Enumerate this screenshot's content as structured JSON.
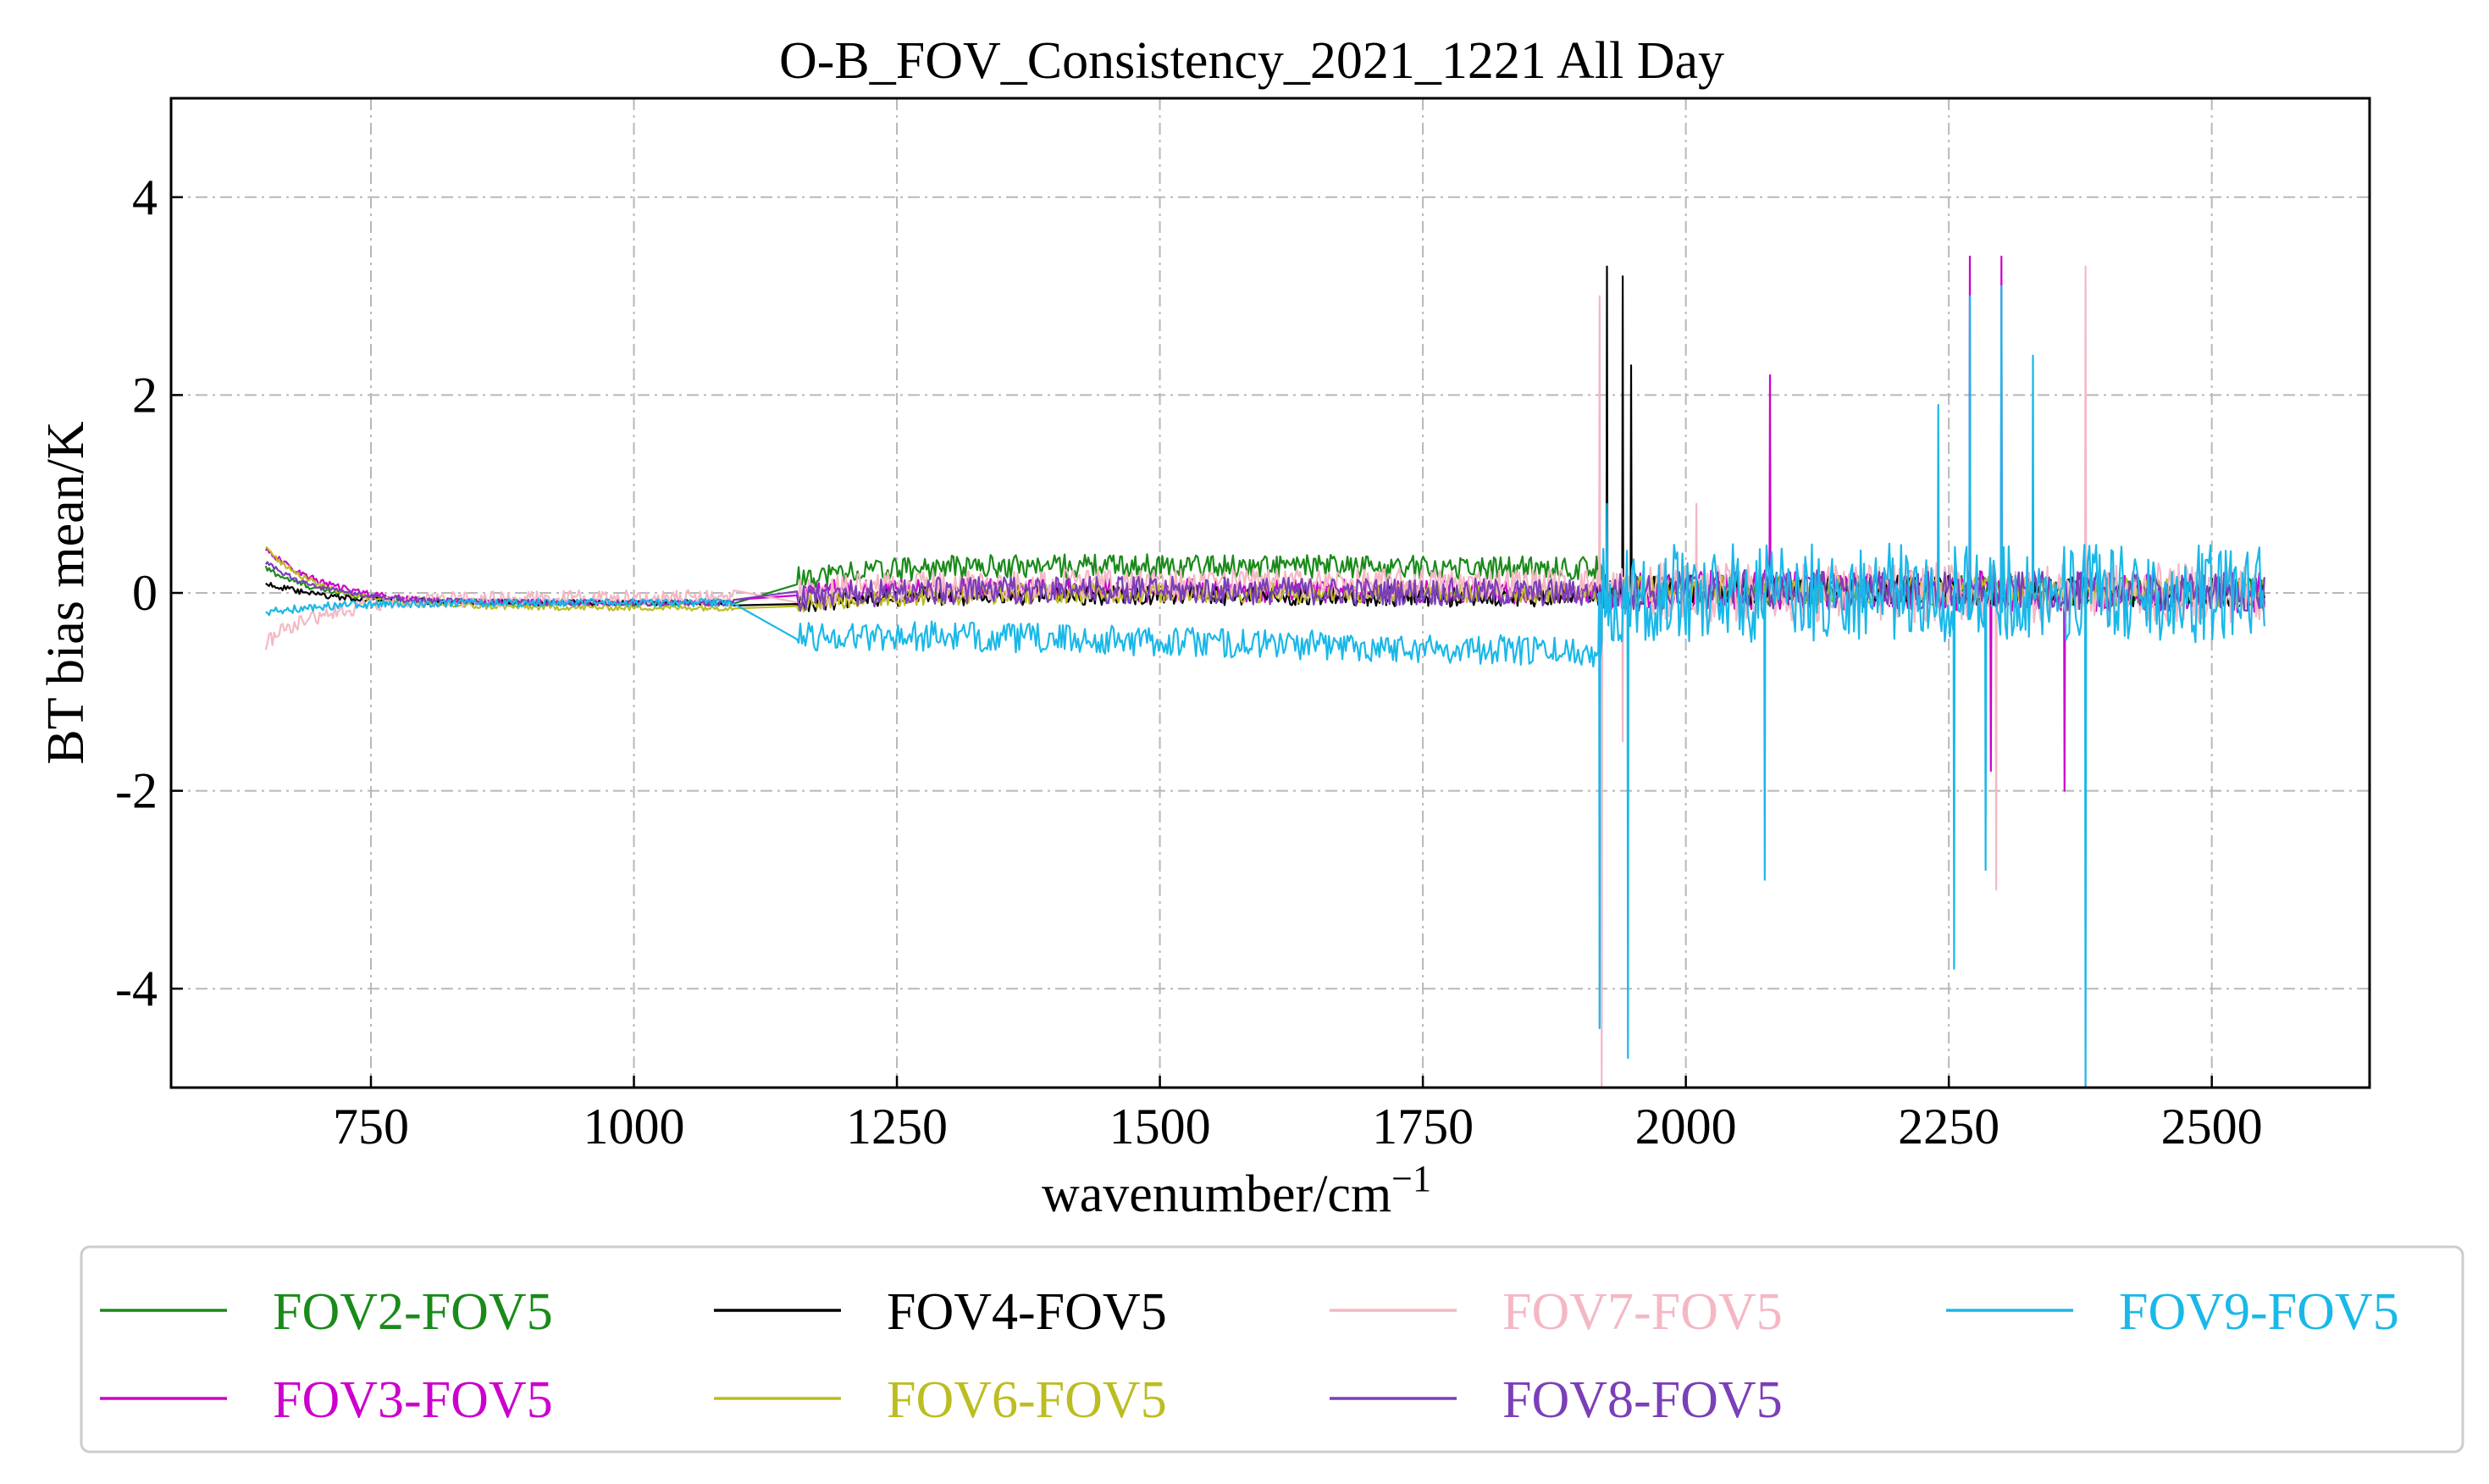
{
  "chart_data": {
    "type": "line",
    "title": "O-B_FOV_Consistency_2021_1221 All Day",
    "xlabel": "wavenumber/cm",
    "xlabel_superscript": "−1",
    "ylabel": "BT bias mean/K",
    "xlim": [
      560,
      2650
    ],
    "ylim": [
      -5,
      5
    ],
    "x_ticks": [
      750,
      1000,
      1250,
      1500,
      1750,
      2000,
      2250,
      2500
    ],
    "x_tick_labels": [
      "750",
      "1000",
      "1250",
      "1500",
      "1750",
      "2000",
      "2250",
      "2500"
    ],
    "y_ticks": [
      -4,
      -2,
      0,
      2,
      4
    ],
    "y_tick_labels": [
      "-4",
      "-2",
      "0",
      "2",
      "4"
    ],
    "grid": true,
    "legend_position": "bottom",
    "legend_columns": 4,
    "series": [
      {
        "name": "FOV2-FOV5",
        "color": "#1a8a1a",
        "segments": [
          {
            "x0": 650,
            "x1": 1095,
            "y_start": 0.25,
            "y_end": -0.1,
            "mean": -0.1,
            "noise": 0.03
          },
          {
            "x0": 1155,
            "x1": 1920,
            "y_start": 0.15,
            "y_end": 0.25,
            "mean": 0.3,
            "noise": 0.12
          },
          {
            "x0": 1920,
            "x1": 2550,
            "y_start": 0.0,
            "y_end": 0.0,
            "mean": 0.05,
            "noise": 0.15
          }
        ]
      },
      {
        "name": "FOV3-FOV5",
        "color": "#cc00cc",
        "segments": [
          {
            "x0": 650,
            "x1": 1095,
            "y_start": 0.45,
            "y_end": -0.1,
            "mean": -0.1,
            "noise": 0.03
          },
          {
            "x0": 1155,
            "x1": 1920,
            "y_start": 0.0,
            "y_end": 0.0,
            "mean": 0.05,
            "noise": 0.12
          },
          {
            "x0": 1920,
            "x1": 2550,
            "y_start": 0.0,
            "y_end": 0.0,
            "mean": 0.05,
            "noise": 0.2
          }
        ],
        "spikes": [
          [
            2080,
            2.2
          ],
          [
            2270,
            3.4
          ],
          [
            2300,
            3.4
          ],
          [
            2290,
            -1.8
          ],
          [
            2360,
            -2.0
          ]
        ]
      },
      {
        "name": "FOV4-FOV5",
        "color": "#000000",
        "segments": [
          {
            "x0": 650,
            "x1": 1095,
            "y_start": 0.1,
            "y_end": -0.1,
            "mean": -0.1,
            "noise": 0.03
          },
          {
            "x0": 1155,
            "x1": 1920,
            "y_start": -0.1,
            "y_end": -0.05,
            "mean": 0.0,
            "noise": 0.1
          },
          {
            "x0": 1920,
            "x1": 2550,
            "y_start": 0.0,
            "y_end": 0.0,
            "mean": 0.05,
            "noise": 0.15
          }
        ],
        "spikes": [
          [
            1925,
            3.3
          ],
          [
            1940,
            3.2
          ],
          [
            1948,
            2.3
          ]
        ]
      },
      {
        "name": "FOV6-FOV5",
        "color": "#bcbd22",
        "segments": [
          {
            "x0": 650,
            "x1": 1095,
            "y_start": 0.45,
            "y_end": -0.15,
            "mean": -0.15,
            "noise": 0.03
          },
          {
            "x0": 1155,
            "x1": 1920,
            "y_start": -0.1,
            "y_end": 0.0,
            "mean": 0.0,
            "noise": 0.1
          },
          {
            "x0": 1920,
            "x1": 2550,
            "y_start": 0.0,
            "y_end": 0.0,
            "mean": 0.05,
            "noise": 0.15
          }
        ]
      },
      {
        "name": "FOV7-FOV5",
        "color": "#f4b8c4",
        "segments": [
          {
            "x0": 650,
            "x1": 1095,
            "y_start": -0.5,
            "y_end": -0.05,
            "mean": -0.05,
            "noise": 0.08
          },
          {
            "x0": 1155,
            "x1": 1920,
            "y_start": 0.0,
            "y_end": 0.1,
            "mean": 0.1,
            "noise": 0.15
          },
          {
            "x0": 1920,
            "x1": 2550,
            "y_start": 0.0,
            "y_end": 0.0,
            "mean": 0.0,
            "noise": 0.3
          }
        ],
        "spikes": [
          [
            1918,
            3.0
          ],
          [
            1920,
            -5.0
          ],
          [
            1940,
            -1.5
          ],
          [
            2010,
            0.9
          ],
          [
            2295,
            -3.0
          ],
          [
            2380,
            3.3
          ]
        ]
      },
      {
        "name": "FOV8-FOV5",
        "color": "#7b3fb8",
        "segments": [
          {
            "x0": 650,
            "x1": 1095,
            "y_start": 0.3,
            "y_end": -0.1,
            "mean": -0.1,
            "noise": 0.03
          },
          {
            "x0": 1155,
            "x1": 1920,
            "y_start": -0.05,
            "y_end": 0.0,
            "mean": 0.05,
            "noise": 0.14
          },
          {
            "x0": 1920,
            "x1": 2550,
            "y_start": 0.0,
            "y_end": 0.0,
            "mean": 0.05,
            "noise": 0.2
          }
        ]
      },
      {
        "name": "FOV9-FOV5",
        "color": "#1ab8e8",
        "segments": [
          {
            "x0": 650,
            "x1": 1095,
            "y_start": -0.2,
            "y_end": -0.1,
            "mean": -0.1,
            "noise": 0.04
          },
          {
            "x0": 1155,
            "x1": 1920,
            "y_start": -0.45,
            "y_end": -0.6,
            "mean": -0.4,
            "noise": 0.15
          },
          {
            "x0": 1920,
            "x1": 2550,
            "y_start": 0.0,
            "y_end": 0.0,
            "mean": 0.0,
            "noise": 0.5
          }
        ],
        "spikes": [
          [
            1918,
            -4.4
          ],
          [
            1925,
            0.9
          ],
          [
            1945,
            -4.7
          ],
          [
            2075,
            -2.9
          ],
          [
            2240,
            1.9
          ],
          [
            2255,
            -3.8
          ],
          [
            2270,
            3.0
          ],
          [
            2285,
            -2.8
          ],
          [
            2300,
            3.1
          ],
          [
            2330,
            2.4
          ],
          [
            2380,
            -5.0
          ]
        ]
      }
    ]
  }
}
